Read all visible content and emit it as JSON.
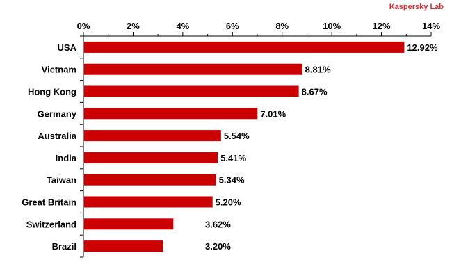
{
  "brand": {
    "text": "Kaspersky Lab",
    "color": "#e8282d"
  },
  "chart_data": {
    "type": "bar",
    "orientation": "horizontal",
    "title": "",
    "xlabel": "",
    "ylabel": "",
    "xlim": [
      0,
      14
    ],
    "x_ticks": [
      0,
      2,
      4,
      6,
      8,
      10,
      12,
      14
    ],
    "x_tick_labels": [
      "0%",
      "2%",
      "4%",
      "6%",
      "8%",
      "10%",
      "12%",
      "14%"
    ],
    "x_axis_position": "top",
    "grid": false,
    "legend": "none",
    "bar_color": "#cc0000",
    "categories": [
      "USA",
      "Vietnam",
      "Hong Kong",
      "Germany",
      "Australia",
      "India",
      "Taiwan",
      "Great Britain",
      "Switzerland",
      "Brazil"
    ],
    "values": [
      12.92,
      8.81,
      8.67,
      7.01,
      5.54,
      5.41,
      5.34,
      5.2,
      3.62,
      3.2
    ],
    "data_labels": [
      "12.92%",
      "8.81%",
      "8.67%",
      "7.01%",
      "5.54%",
      "5.41%",
      "5.34%",
      "5.20%",
      "3.62%",
      "3.20%"
    ]
  }
}
